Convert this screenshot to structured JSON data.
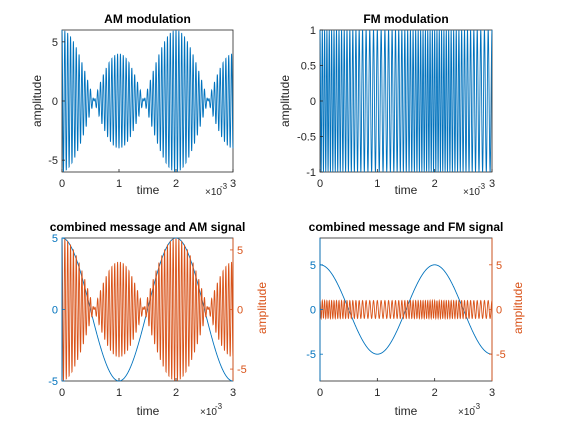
{
  "figure": {
    "background": "#ffffff"
  },
  "colors": {
    "blue": "#0072BD",
    "orange": "#D95319",
    "axis": "#262626"
  },
  "chart_data": [
    {
      "type": "line",
      "title": "AM modulation",
      "xlabel": "time",
      "ylabel": "amplitude",
      "x_exponent_label": "×10",
      "x_exponent": "-3",
      "xlim": [
        0,
        3
      ],
      "ylim": [
        -6,
        6
      ],
      "xticks": [
        0,
        1,
        2,
        3
      ],
      "xtick_labels": [
        "0",
        "1",
        "2",
        "3"
      ],
      "yticks": [
        -5,
        0,
        5
      ],
      "ytick_labels": [
        "-5",
        "0",
        "5"
      ],
      "grid": false,
      "series": [
        {
          "color": "#0072BD",
          "signal": {
            "kind": "am",
            "carrier_hz": 20000,
            "message_hz": 500,
            "carrier_amplitude": 1,
            "message_amplitude": 5,
            "t_end": 0.003
          }
        }
      ]
    },
    {
      "type": "line",
      "title": "FM modulation",
      "xlabel": "time",
      "ylabel": "amplitude",
      "x_exponent_label": "×10",
      "x_exponent": "-3",
      "xlim": [
        0,
        3
      ],
      "ylim": [
        -1,
        1
      ],
      "xticks": [
        0,
        1,
        2,
        3
      ],
      "xtick_labels": [
        "0",
        "1",
        "2",
        "3"
      ],
      "yticks": [
        -1,
        -0.5,
        0,
        0.5,
        1
      ],
      "ytick_labels": [
        "-1",
        "-0.5",
        "0",
        "0.5",
        "1"
      ],
      "grid": false,
      "series": [
        {
          "color": "#0072BD",
          "signal": {
            "kind": "fm",
            "carrier_hz": 20000,
            "message_hz": 500,
            "frequency_deviation_hz": 5000,
            "t_end": 0.003
          }
        }
      ]
    },
    {
      "type": "line",
      "title": "combined message and AM signal",
      "xlabel": "time",
      "ylabel_right": "amplitude",
      "x_exponent_label": "×10",
      "x_exponent": "-3",
      "xlim": [
        0,
        3
      ],
      "ylim_left": [
        -5,
        5
      ],
      "ylim_right": [
        -6,
        6
      ],
      "xticks": [
        0,
        1,
        2,
        3
      ],
      "xtick_labels": [
        "0",
        "1",
        "2",
        "3"
      ],
      "yticks_left": [
        -5,
        0,
        5
      ],
      "ytick_labels_left": [
        "-5",
        "0",
        "5"
      ],
      "yticks_right": [
        -5,
        0,
        5
      ],
      "ytick_labels_right": [
        "-5",
        "0",
        "5"
      ],
      "grid": false,
      "series": [
        {
          "color": "#0072BD",
          "axis": "left",
          "signal": {
            "kind": "message",
            "message_hz": 500,
            "message_amplitude": 5,
            "t_end": 0.003
          }
        },
        {
          "color": "#D95319",
          "axis": "right",
          "signal": {
            "kind": "am",
            "carrier_hz": 20000,
            "message_hz": 500,
            "carrier_amplitude": 1,
            "message_amplitude": 5,
            "t_end": 0.003
          }
        }
      ]
    },
    {
      "type": "line",
      "title": "combined message and FM signal",
      "xlabel": "time",
      "ylabel_right": "amplitude",
      "x_exponent_label": "×10",
      "x_exponent": "-3",
      "xlim": [
        0,
        3
      ],
      "ylim_left": [
        -8,
        8
      ],
      "ylim_right": [
        -8,
        8
      ],
      "xticks": [
        0,
        1,
        2,
        3
      ],
      "xtick_labels": [
        "0",
        "1",
        "2",
        "3"
      ],
      "yticks_left": [
        -5,
        0,
        5
      ],
      "ytick_labels_left": [
        "-5",
        "0",
        "5"
      ],
      "yticks_right": [
        -5,
        0,
        5
      ],
      "ytick_labels_right": [
        "-5",
        "0",
        "5"
      ],
      "grid": false,
      "series": [
        {
          "color": "#0072BD",
          "axis": "left",
          "signal": {
            "kind": "message",
            "message_hz": 500,
            "message_amplitude": 5,
            "t_end": 0.003
          }
        },
        {
          "color": "#D95319",
          "axis": "right",
          "signal": {
            "kind": "fm",
            "carrier_hz": 20000,
            "message_hz": 500,
            "frequency_deviation_hz": 5000,
            "t_end": 0.003
          }
        }
      ]
    }
  ]
}
